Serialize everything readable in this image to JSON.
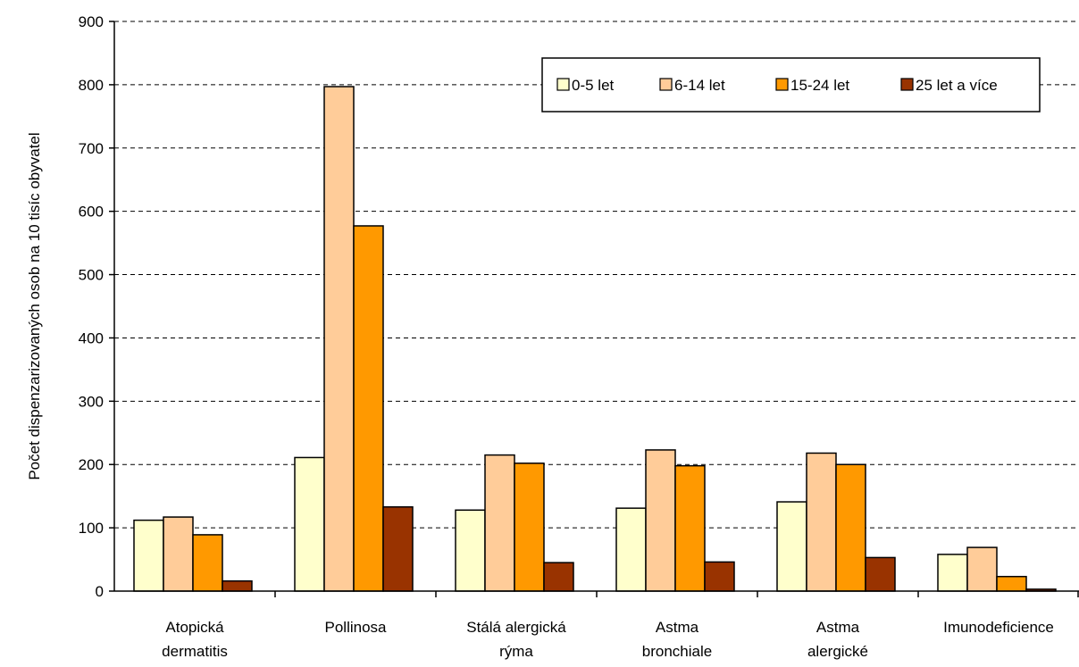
{
  "chart_data": {
    "type": "bar",
    "title": "",
    "xlabel": "",
    "ylabel": "Počet dispenzarizovaných osob na 10 tisíc obyvatel",
    "ylim": [
      0,
      900
    ],
    "yticks": [
      0,
      100,
      200,
      300,
      400,
      500,
      600,
      700,
      800,
      900
    ],
    "grid": "horizontal-dashed",
    "legend_position": "top-right",
    "categories": [
      [
        "Atopická",
        "dermatitis"
      ],
      [
        "Pollinosa"
      ],
      [
        "Stálá alergická",
        "rýma"
      ],
      [
        "Astma",
        "bronchiale"
      ],
      [
        "Astma",
        "alergické"
      ],
      [
        "Imunodeficience"
      ]
    ],
    "series": [
      {
        "name": "0-5 let",
        "color": "#FFFFCC",
        "values": [
          112,
          211,
          128,
          131,
          141,
          58
        ]
      },
      {
        "name": "6-14 let",
        "color": "#FFCC99",
        "values": [
          117,
          797,
          215,
          223,
          218,
          69
        ]
      },
      {
        "name": "15-24 let",
        "color": "#FF9900",
        "values": [
          89,
          577,
          202,
          198,
          200,
          23
        ]
      },
      {
        "name": "25 let a více",
        "color": "#993300",
        "values": [
          16,
          133,
          45,
          46,
          53,
          3
        ]
      }
    ]
  }
}
